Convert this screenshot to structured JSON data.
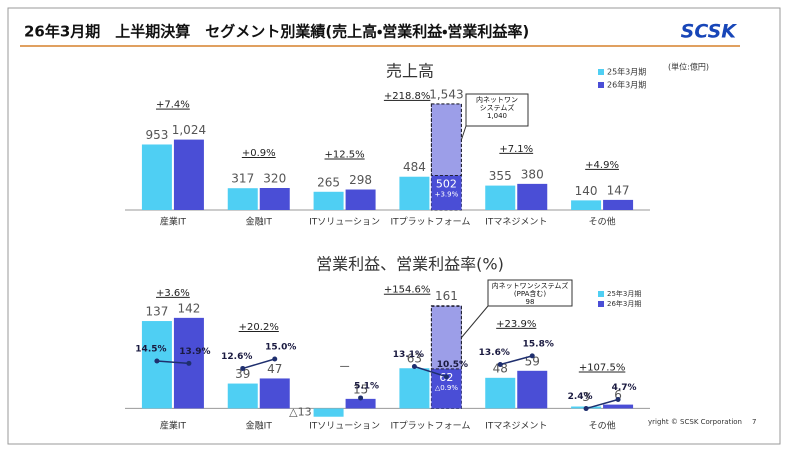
{
  "header": {
    "title": "26年3月期　上半期決算　セグメント別業績(売上高・営業利益・営業利益率)",
    "logo": "SCSK",
    "unit": "(単位:億円)"
  },
  "footer": {
    "copyright": "yright © SCSK Corporation",
    "page": "7"
  },
  "chart_data": [
    {
      "type": "bar",
      "title": "売上高",
      "categories": [
        "産業IT",
        "金融IT",
        "ITソリューション",
        "ITプラットフォーム",
        "ITマネジメント",
        "その他"
      ],
      "series": [
        {
          "name": "25年3月期",
          "color": "#4fcff3",
          "values": [
            953,
            317,
            265,
            484,
            355,
            140
          ]
        },
        {
          "name": "26年3月期",
          "color": "#4a4ed6",
          "values": [
            1024,
            320,
            298,
            1543,
            380,
            147
          ],
          "value_labels": [
            "1,024",
            "320",
            "298",
            "1,543",
            "380",
            "147"
          ]
        }
      ],
      "growth_labels": [
        "+7.4%",
        "+0.9%",
        "+12.5%",
        "+218.8%",
        "+7.1%",
        "+4.9%"
      ],
      "breakdown": [
        null,
        null,
        null,
        {
          "value": 502,
          "growth": "+3.9%",
          "callout": {
            "lines": [
              "内ネットワン",
              "システムズ"
            ],
            "value": 1040,
            "value_label": "1,040"
          }
        },
        null,
        null
      ],
      "ylim": [
        0,
        1600
      ]
    },
    {
      "type": "bar",
      "title": "営業利益、営業利益率(%)",
      "categories": [
        "産業IT",
        "金融IT",
        "ITソリューション",
        "ITプラットフォーム",
        "ITマネジメント",
        "その他"
      ],
      "series": [
        {
          "name": "25年3月期",
          "color": "#4fcff3",
          "values": [
            137,
            39,
            -13,
            63,
            48,
            3
          ],
          "value_labels": [
            "137",
            "39",
            "△13",
            "63",
            "48",
            "3"
          ]
        },
        {
          "name": "26年3月期",
          "color": "#4a4ed6",
          "values": [
            142,
            47,
            15,
            161,
            59,
            6
          ]
        }
      ],
      "margin_series": [
        {
          "axis": "y2",
          "color": "#1f2f6e",
          "values": [
            14.5,
            12.6,
            null,
            13.1,
            13.6,
            2.4
          ],
          "value_labels": [
            "14.5%",
            "12.6%",
            null,
            "13.1%",
            "13.6%",
            "2.4%"
          ]
        },
        {
          "axis": "y2",
          "color": "#1f2f6e",
          "values": [
            13.9,
            15.0,
            5.1,
            10.5,
            15.8,
            4.7
          ],
          "value_labels": [
            "13.9%",
            "15.0%",
            "5.1%",
            "10.5%",
            "15.8%",
            "4.7%"
          ]
        }
      ],
      "growth_labels": [
        "+3.6%",
        "+20.2%",
        "—",
        "+154.6%",
        "+23.9%",
        "+107.5%"
      ],
      "breakdown": [
        null,
        null,
        null,
        {
          "value": 62,
          "growth": "△0.9%",
          "callout": {
            "lines": [
              "内ネットワンシステムズ",
              "(PPA含む)"
            ],
            "value": 98
          }
        },
        null,
        null
      ],
      "ylim": [
        -15,
        170
      ],
      "y2lim": [
        0,
        30
      ]
    }
  ]
}
